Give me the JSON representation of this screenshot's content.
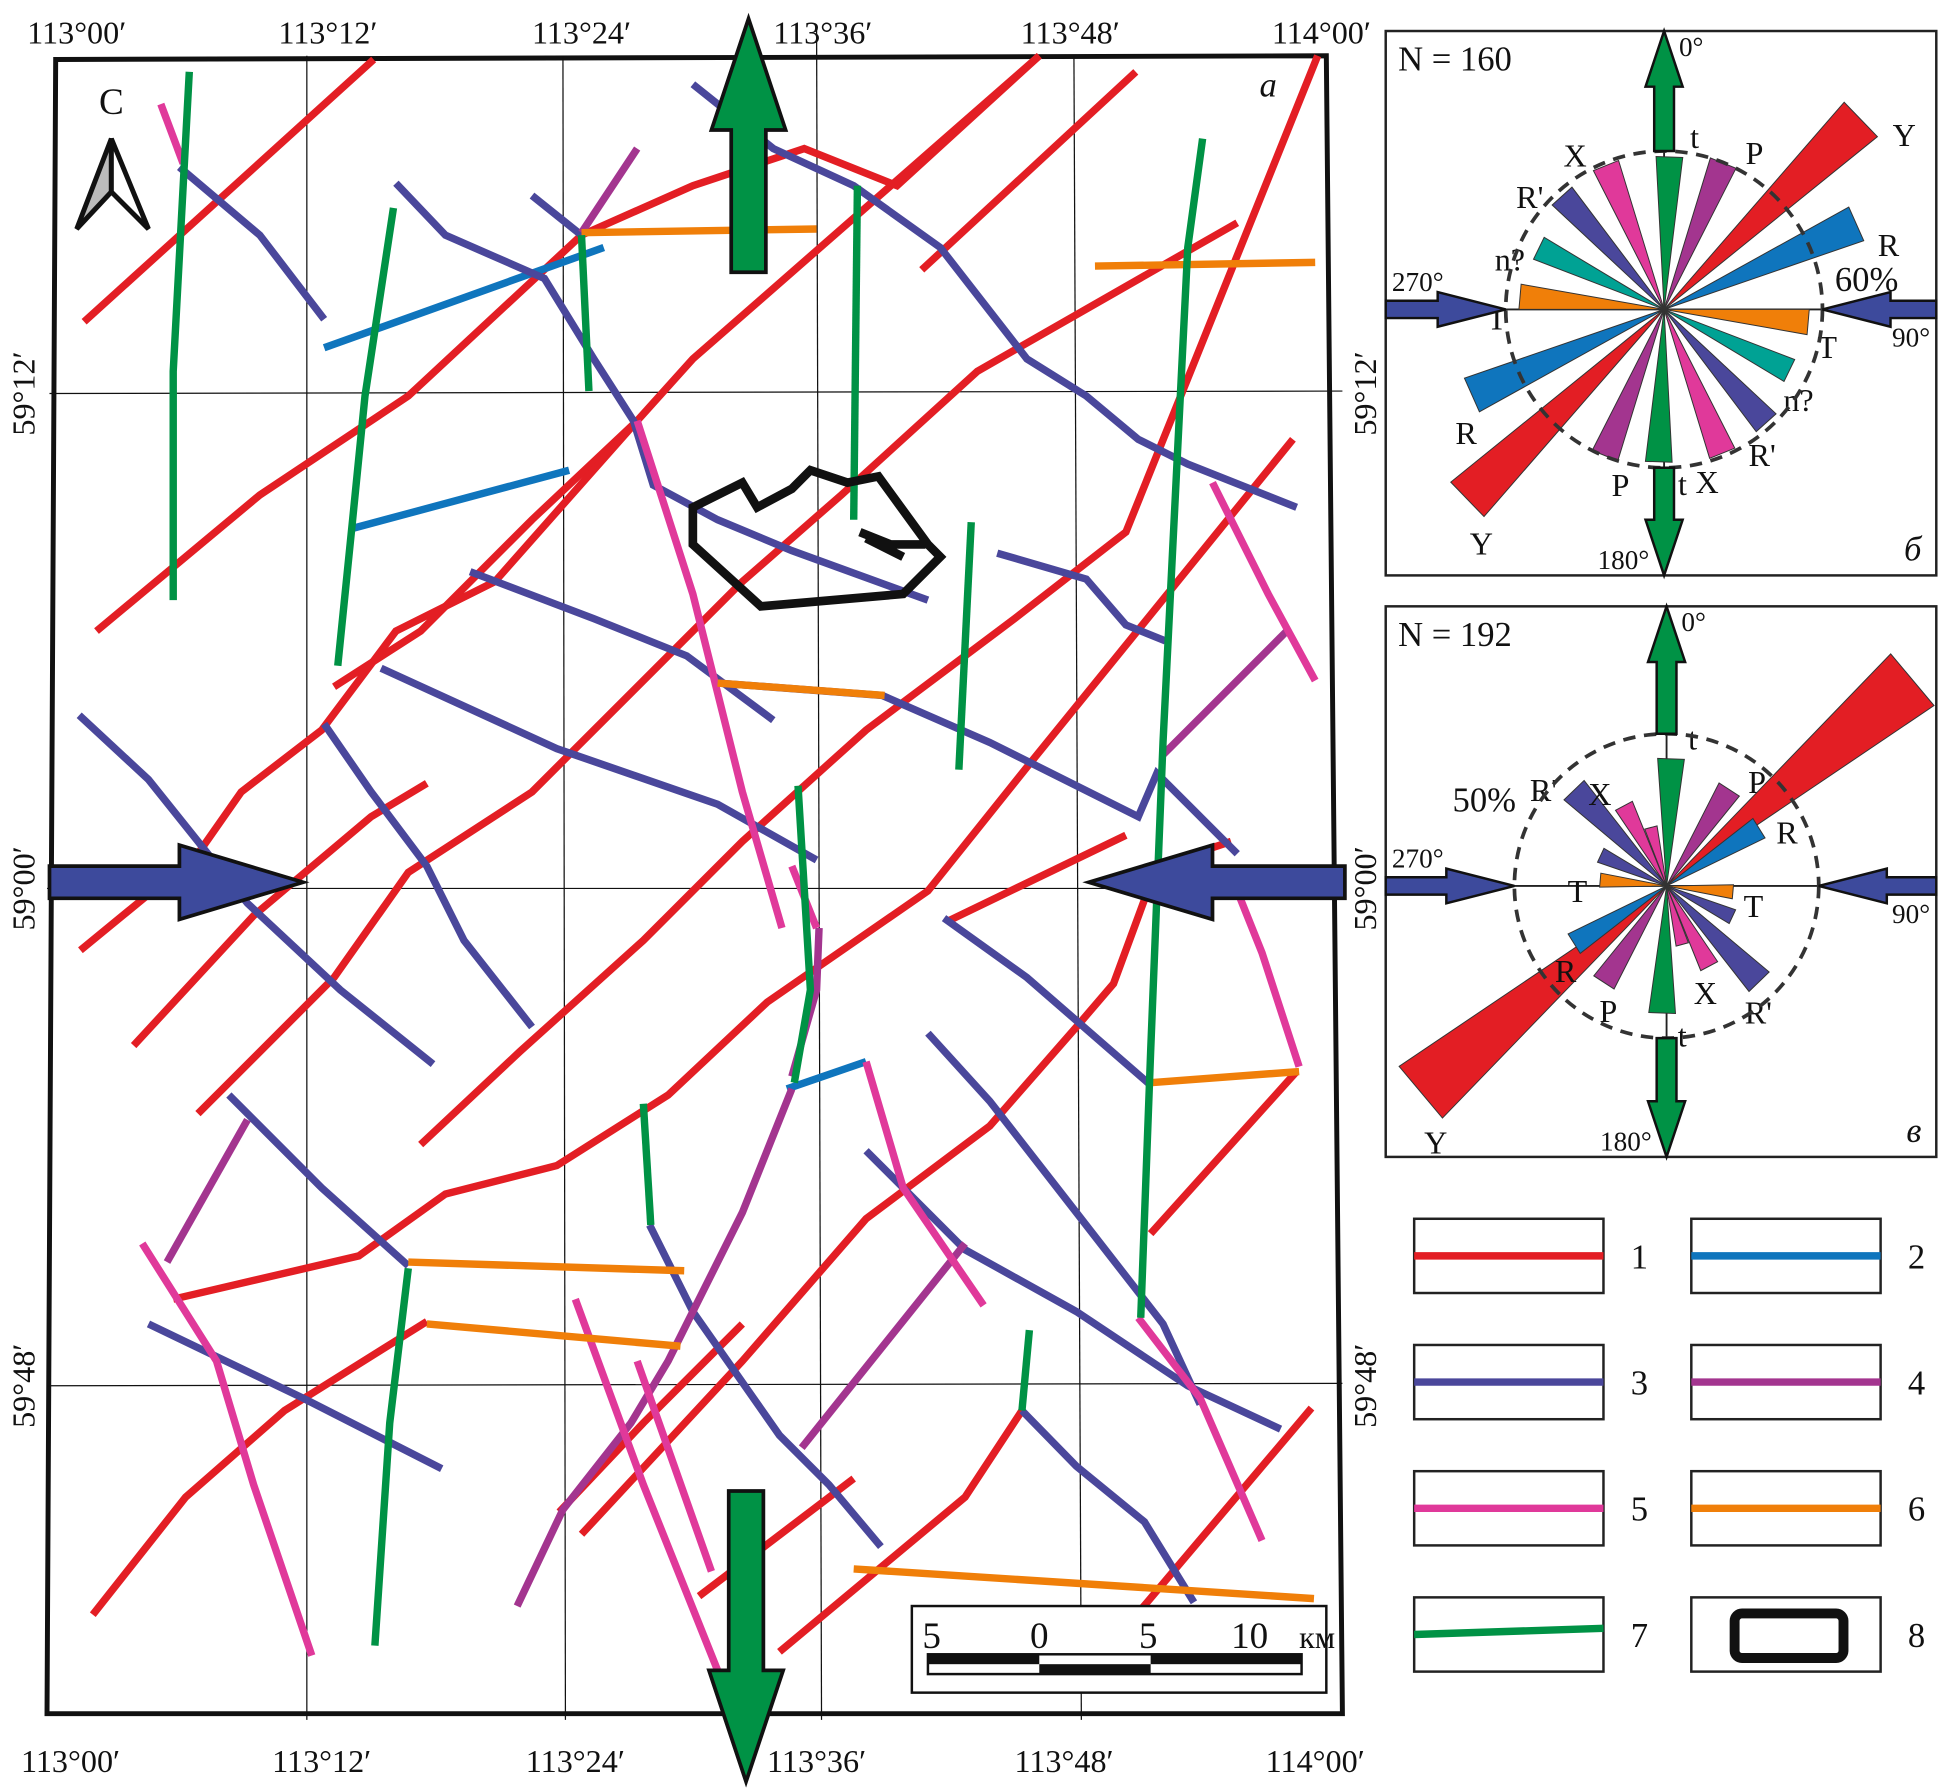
{
  "map": {
    "panel_label": "а",
    "north_label": "С",
    "longitude_labels": [
      "113°00′",
      "113°12′",
      "113°24′",
      "113°36′",
      "113°48′",
      "114°00′"
    ],
    "latitude_labels": [
      "59°12′",
      "59°00′",
      "59°48′"
    ],
    "scale_bar": {
      "ticks": [
        "5",
        "0",
        "5",
        "10"
      ],
      "unit": "км"
    }
  },
  "colors": {
    "fault_1": "#e31e24",
    "fault_2": "#0f75bd",
    "fault_3": "#4a479b",
    "fault_4": "#a3358f",
    "fault_5": "#e0399a",
    "fault_6": "#f07f09",
    "fault_7": "#009245",
    "compression_arrow": "#3d4a9c",
    "extension_arrow": "#009245",
    "n_petal": "#00a294"
  },
  "rose_diagrams": [
    {
      "panel_label": "б",
      "count_label": "N = 160",
      "scale_label": "60%",
      "scale_percent": 60,
      "direction_labels": [
        "0°",
        "90°",
        "180°",
        "270°"
      ],
      "petals": [
        {
          "label": "t",
          "azimuth": 2,
          "percent": 58,
          "color": "#009245"
        },
        {
          "label": "P",
          "azimuth": 22,
          "percent": 60,
          "color": "#a3358f"
        },
        {
          "label": "Y",
          "azimuth": 46,
          "percent": 104,
          "color": "#e31e24"
        },
        {
          "label": "R",
          "azimuth": 66,
          "percent": 80,
          "color": "#0f75bd"
        },
        {
          "label": "T",
          "azimuth": 95,
          "percent": 55,
          "color": "#f07f09"
        },
        {
          "label": "n?",
          "azimuth": 116,
          "percent": 53,
          "color": "#00a294"
        },
        {
          "label": "R'",
          "azimuth": 138,
          "percent": 58,
          "color": "#4a479b"
        },
        {
          "label": "X",
          "azimuth": 158,
          "percent": 59,
          "color": "#e0399a"
        }
      ]
    },
    {
      "panel_label": "в",
      "count_label": "N = 192",
      "scale_label": "50%",
      "scale_percent": 50,
      "direction_labels": [
        "0°",
        "90°",
        "180°",
        "270°"
      ],
      "petals": [
        {
          "label": "t",
          "azimuth": 2,
          "percent": 42,
          "color": "#009245"
        },
        {
          "label": "P",
          "azimuth": 33,
          "percent": 38,
          "color": "#a3358f"
        },
        {
          "label": "Y",
          "azimuth": 50,
          "percent": 106,
          "color": "#e31e24"
        },
        {
          "label": "R",
          "azimuth": 58,
          "percent": 36,
          "color": "#0f75bd"
        },
        {
          "label": "T",
          "azimuth": 95,
          "percent": 22,
          "color": "#f07f09"
        },
        {
          "label": "",
          "azimuth": 115,
          "percent": 24,
          "color": "#4a479b"
        },
        {
          "label": "R'",
          "azimuth": 136,
          "percent": 44,
          "color": "#4a479b"
        },
        {
          "label": "X",
          "azimuth": 152,
          "percent": 30,
          "color": "#e0399a"
        },
        {
          "label": "",
          "azimuth": 165,
          "percent": 20,
          "color": "#e0399a"
        }
      ]
    }
  ],
  "legend": [
    {
      "number": "1",
      "color": "#e31e24",
      "symbol": "line"
    },
    {
      "number": "2",
      "color": "#0f75bd",
      "symbol": "line"
    },
    {
      "number": "3",
      "color": "#4a479b",
      "symbol": "line"
    },
    {
      "number": "4",
      "color": "#a3358f",
      "symbol": "line"
    },
    {
      "number": "5",
      "color": "#e0399a",
      "symbol": "line"
    },
    {
      "number": "6",
      "color": "#f07f09",
      "symbol": "line"
    },
    {
      "number": "7",
      "color": "#009245",
      "symbol": "line"
    },
    {
      "number": "8",
      "color": "#111111",
      "symbol": "outline"
    }
  ]
}
